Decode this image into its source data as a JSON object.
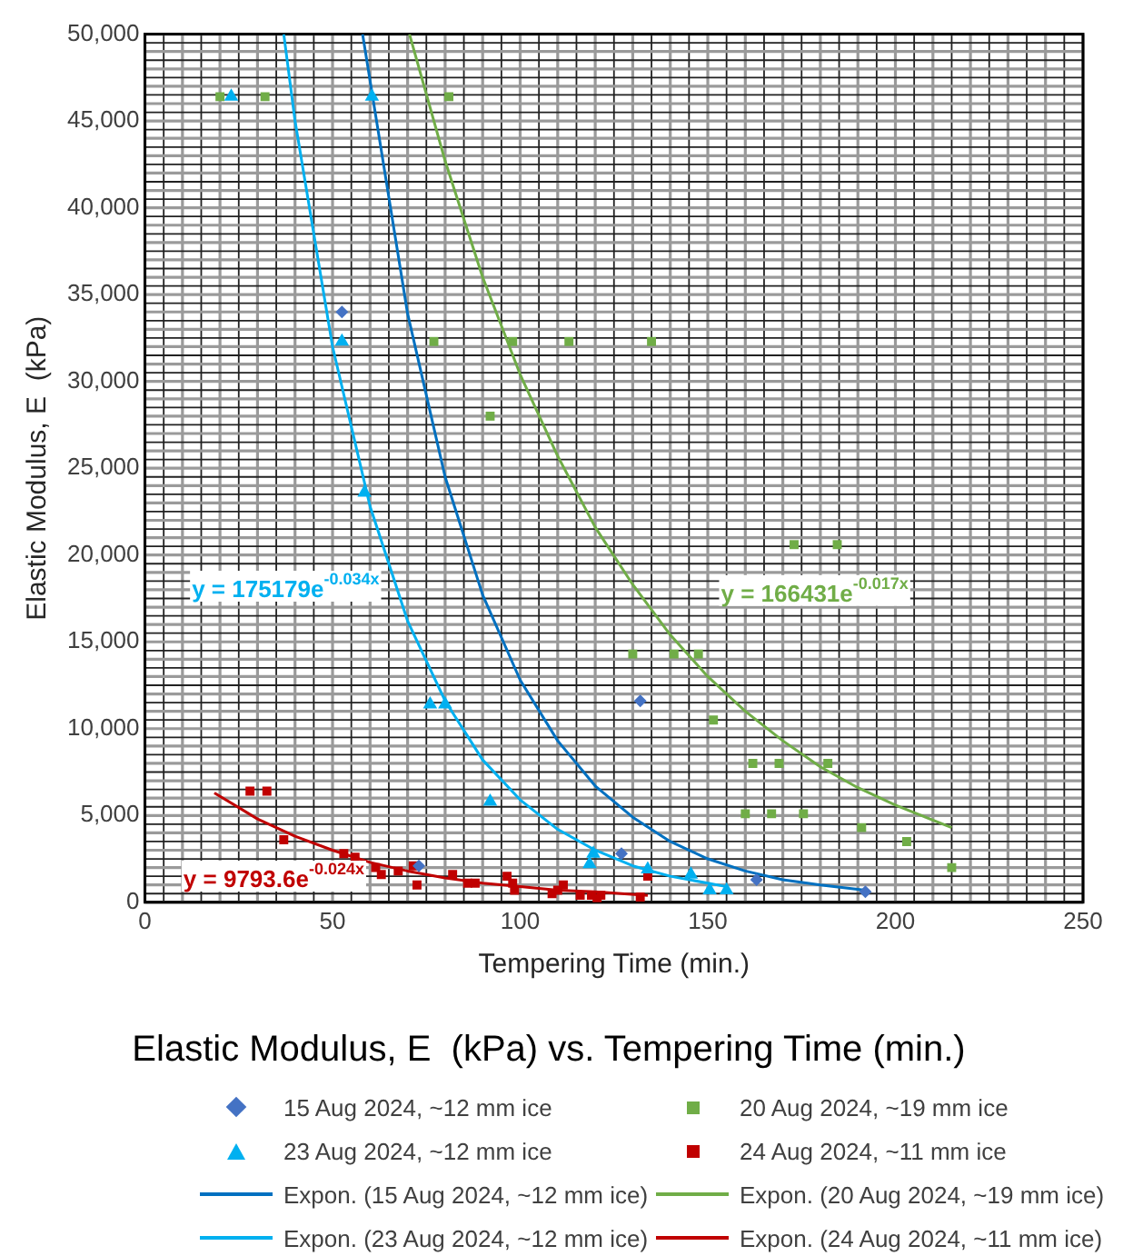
{
  "chart_data": {
    "type": "scatter",
    "title": "Elastic Modulus, E  (kPa) vs. Tempering Time (min.)",
    "xlabel": "Tempering Time (min.)",
    "ylabel": "Elastic Modulus, E  (kPa)",
    "xlim": [
      0,
      250
    ],
    "xticks": [
      0,
      50,
      100,
      150,
      200,
      250
    ],
    "ylim": [
      0,
      50000
    ],
    "yticks": [
      {
        "value": 0,
        "label": "0"
      },
      {
        "value": 5000,
        "label": "5,000"
      },
      {
        "value": 10000,
        "label": "10,000"
      },
      {
        "value": 15000,
        "label": "15,000"
      },
      {
        "value": 20000,
        "label": "20,000"
      },
      {
        "value": 25000,
        "label": "25,000"
      },
      {
        "value": 30000,
        "label": "30,000"
      },
      {
        "value": 35000,
        "label": "35,000"
      },
      {
        "value": 40000,
        "label": "40,000"
      },
      {
        "value": 45000,
        "label": "45,000"
      },
      {
        "value": 50000,
        "label": "50,000"
      }
    ],
    "grid": true,
    "legend": "bottom",
    "series": [
      {
        "name": "15 Aug 2024, ~12 mm ice",
        "type": "scatter",
        "marker": "diamond",
        "color": "#4472c4",
        "x": [
          52.5,
          73,
          127,
          132,
          163,
          192
        ],
        "values": [
          34000,
          2100,
          2800,
          11600,
          1300,
          600
        ]
      },
      {
        "name": "20 Aug 2024, ~19 mm ice",
        "type": "scatter",
        "marker": "square",
        "color": "#70ad47",
        "x": [
          20,
          32,
          81,
          77,
          98,
          113,
          92,
          135,
          173,
          184.5,
          130,
          141,
          147.5,
          151.5,
          162,
          169,
          182,
          160,
          167,
          175.5,
          191,
          203,
          215
        ],
        "values": [
          46400,
          46400,
          46400,
          32300,
          32300,
          32300,
          28000,
          32300,
          20600,
          20600,
          14300,
          14300,
          14300,
          10500,
          8000,
          8000,
          8000,
          5100,
          5100,
          5100,
          4300,
          3500,
          2000
        ]
      },
      {
        "name": "23 Aug 2024, ~12 mm ice",
        "type": "scatter",
        "marker": "triangle",
        "color": "#00b0f0",
        "x": [
          23,
          60.5,
          52.5,
          58.5,
          76,
          80,
          92,
          119.5,
          118.5,
          134,
          145.5,
          150.5,
          155
        ],
        "values": [
          46400,
          46400,
          32300,
          23600,
          11400,
          11400,
          5800,
          2800,
          2200,
          1900,
          1600,
          700,
          700
        ]
      },
      {
        "name": "24 Aug 2024, ~11 mm ice",
        "type": "scatter",
        "marker": "square",
        "color": "#c00000",
        "x": [
          28,
          32.5,
          37,
          53,
          56,
          61.5,
          63,
          67.5,
          71.5,
          72.5,
          82,
          86,
          88,
          96.5,
          98.5,
          98,
          108.5,
          111.5,
          110,
          116,
          119,
          120.5,
          121.5,
          132,
          134
        ],
        "values": [
          6400,
          6400,
          3600,
          2800,
          2600,
          2000,
          1600,
          1800,
          2100,
          1000,
          1600,
          1100,
          1100,
          1500,
          700,
          1100,
          500,
          1000,
          700,
          400,
          400,
          200,
          400,
          300,
          1500
        ]
      },
      {
        "name": "Expon. (15 Aug 2024, ~12 mm ice)",
        "type": "line",
        "marker": "none",
        "color": "#0070c0",
        "x": [
          58,
          70,
          80,
          90,
          100,
          110,
          120,
          130,
          140,
          150,
          160,
          170,
          180,
          192
        ],
        "values": [
          50000,
          33900,
          24500,
          17700,
          12800,
          9300,
          6700,
          4900,
          3500,
          2500,
          1800,
          1300,
          1000,
          700
        ]
      },
      {
        "name": "Expon. (20 Aug 2024, ~19 mm ice)",
        "type": "line",
        "marker": "none",
        "color": "#70ad47",
        "x": [
          70.5,
          80,
          90,
          100,
          110,
          120,
          130,
          140,
          150,
          160,
          170,
          180,
          190,
          200,
          215
        ],
        "values": [
          50000,
          42700,
          36000,
          30400,
          25700,
          21600,
          18300,
          15400,
          13000,
          11000,
          9300,
          7800,
          6600,
          5600,
          4300
        ]
      },
      {
        "name": "Expon. (23 Aug 2024, ~12 mm ice)",
        "type": "line",
        "marker": "none",
        "color": "#00b0f0",
        "x": [
          37,
          40,
          50,
          60,
          70,
          80,
          90,
          100,
          110,
          120,
          130,
          140,
          150,
          155
        ],
        "values": [
          50000,
          45000,
          32000,
          22800,
          16200,
          11600,
          8200,
          5900,
          4200,
          3000,
          2100,
          1500,
          1100,
          900
        ]
      },
      {
        "name": "Expon. (24 Aug 2024, ~11 mm ice)",
        "type": "line",
        "marker": "none",
        "color": "#c00000",
        "x": [
          18.5,
          30,
          40,
          50,
          60,
          70,
          80,
          90,
          100,
          110,
          120,
          134
        ],
        "values": [
          6300,
          4800,
          3800,
          3000,
          2300,
          1800,
          1400,
          1100,
          900,
          700,
          600,
          400
        ]
      }
    ],
    "annotations": [
      "y = 175179e$^{-0.034x}$",
      "y = 166431e$^{-0.017x}$",
      "y = 9793.6e$^{-0.024x}$"
    ]
  }
}
